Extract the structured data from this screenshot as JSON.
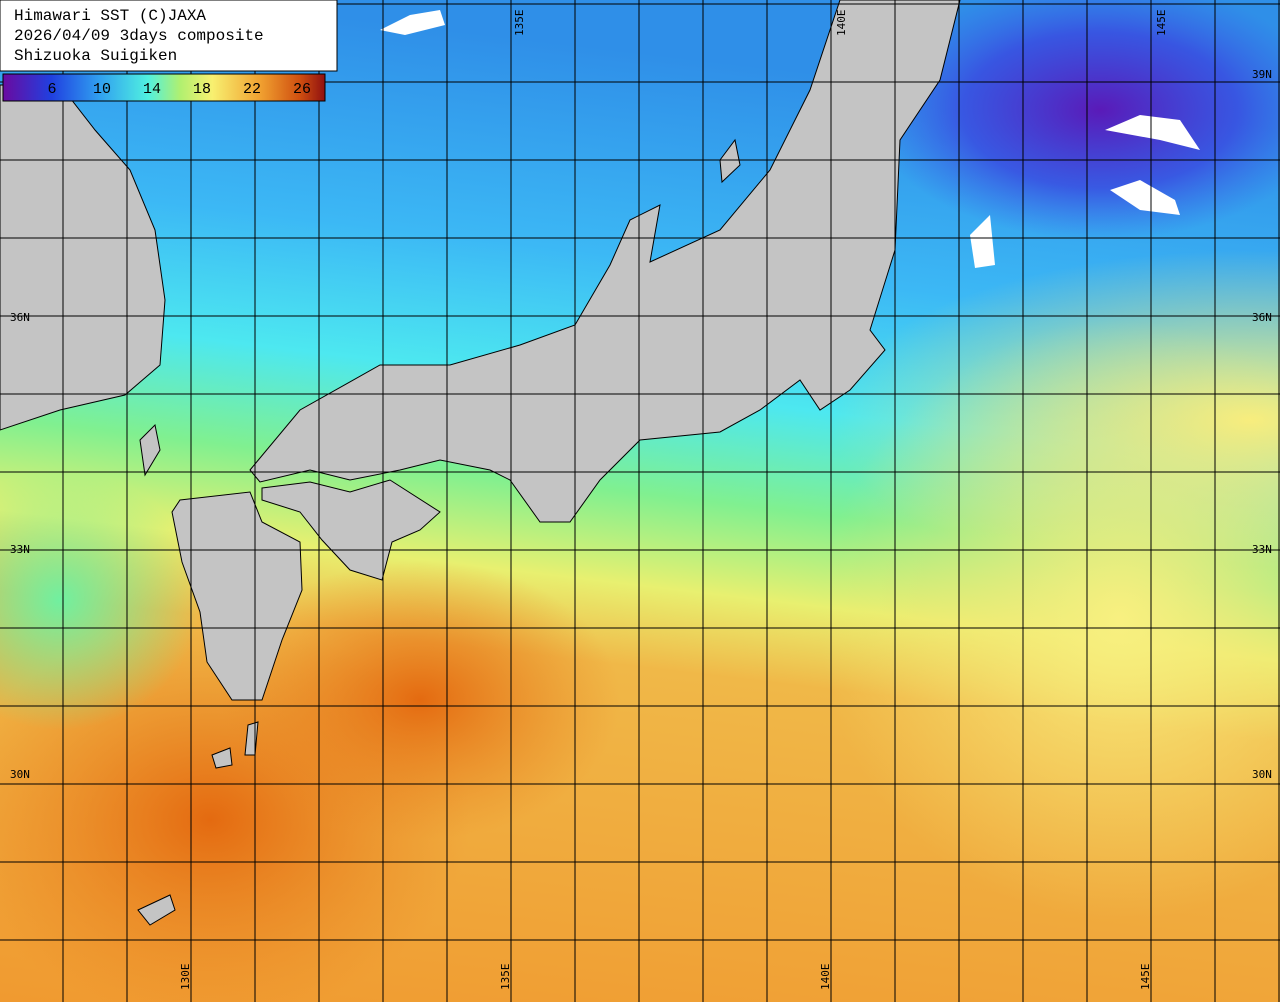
{
  "header": {
    "lines": [
      "Himawari SST (C)JAXA",
      "2026/04/09 3days composite",
      "Shizuoka Suigiken"
    ]
  },
  "colorbar": {
    "labels": [
      6,
      10,
      14,
      18,
      22,
      26
    ]
  },
  "lat_labels": {
    "left": [
      "36N",
      "33N",
      "30N"
    ],
    "right": [
      "39N",
      "36N",
      "33N",
      "30N"
    ]
  },
  "lon_labels": {
    "top": [
      "135E",
      "140E",
      "145E"
    ],
    "bottom": [
      "130E",
      "135E",
      "140E",
      "145E"
    ]
  }
}
